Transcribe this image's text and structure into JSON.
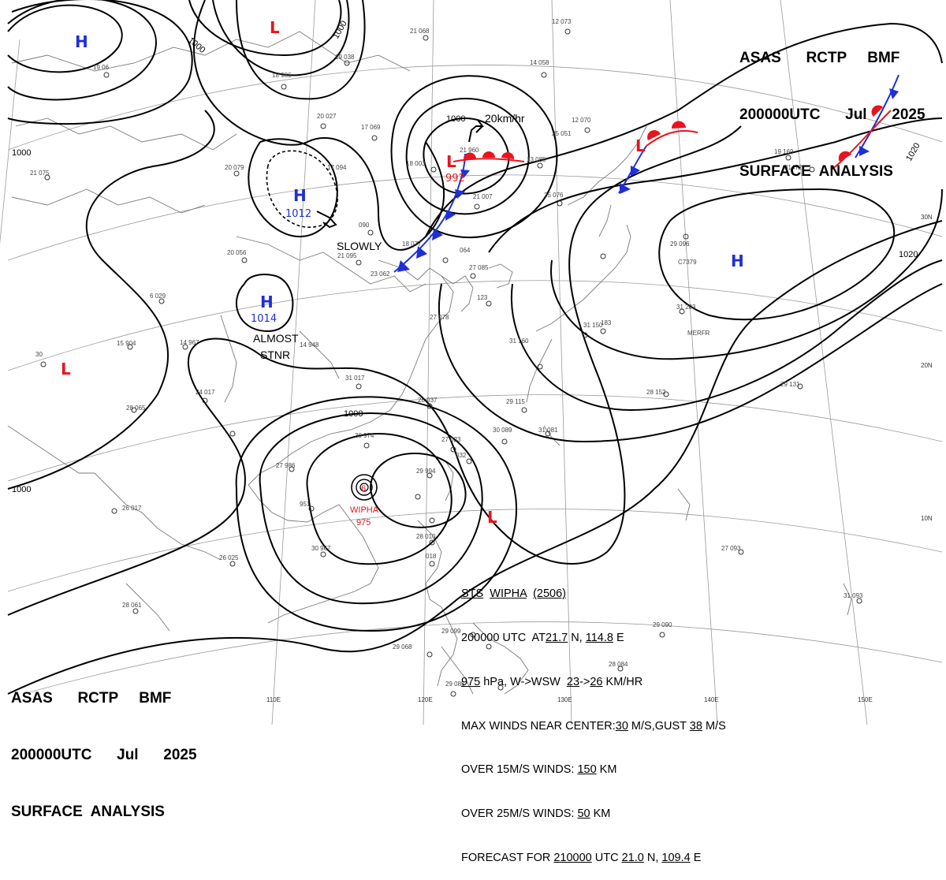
{
  "header": {
    "line1": "ASAS      RCTP     BMF",
    "line2": "200000UTC      Jul      2025",
    "line3": "SURFACE  ANALYSIS"
  },
  "pressure_systems": [
    {
      "type": "H",
      "color": "#1f2fd4",
      "value": ""
    },
    {
      "type": "H",
      "color": "#1f2fd4",
      "value": "1012"
    },
    {
      "type": "H",
      "color": "#1f2fd4",
      "value": "1014"
    },
    {
      "type": "H",
      "color": "#1f2fd4",
      "value": ""
    },
    {
      "type": "L",
      "color": "#e8141e",
      "value": ""
    },
    {
      "type": "L",
      "color": "#e8141e",
      "value": "992"
    },
    {
      "type": "L",
      "color": "#e8141e",
      "value": ""
    },
    {
      "type": "L",
      "color": "#e8141e",
      "value": ""
    },
    {
      "type": "L",
      "color": "#e8141e",
      "value": ""
    }
  ],
  "isobar_labels": [
    "1000",
    "1000",
    "1000",
    "1000",
    "1000",
    "1000",
    "1020",
    "1020"
  ],
  "movement_labels": [
    "20km/hr",
    "SLOWLY",
    "ALMOST",
    "STNR"
  ],
  "typhoon": {
    "name": "WIPHA",
    "pressure": "975",
    "symbol": "6"
  },
  "grid_labels": {
    "lon": [
      "110E",
      "120E",
      "130E",
      "140E",
      "150E"
    ],
    "lat": [
      "30N",
      "20N",
      "10N"
    ]
  },
  "system_info": {
    "l1": [
      "STS",
      "WIPHA",
      "(2506)"
    ],
    "l2": [
      "200000 UTC  AT",
      "21.7",
      " N, ",
      "114.8",
      " E"
    ],
    "l3": [
      "975",
      " hPa, W->WSW  ",
      "23",
      "->",
      "26",
      " KM/HR"
    ],
    "l4": [
      "MAX WINDS NEAR CENTER:",
      "30",
      " M/S,GUST ",
      "38",
      " M/S"
    ],
    "l5": [
      "OVER 15M/S WINDS: ",
      "150",
      " KM"
    ],
    "l6": [
      "OVER 25M/S WINDS: ",
      "50",
      " KM"
    ],
    "l7": [
      "FORECAST FOR ",
      "210000",
      " UTC ",
      "21.0",
      " N, ",
      "109.4",
      " E"
    ]
  },
  "colors": {
    "high": "#1f2fd4",
    "low": "#e8141e",
    "cold_front": "#1f2fd4",
    "warm_front": "#e8141e",
    "isobar": "#000000",
    "coast": "#7a7a7a"
  }
}
